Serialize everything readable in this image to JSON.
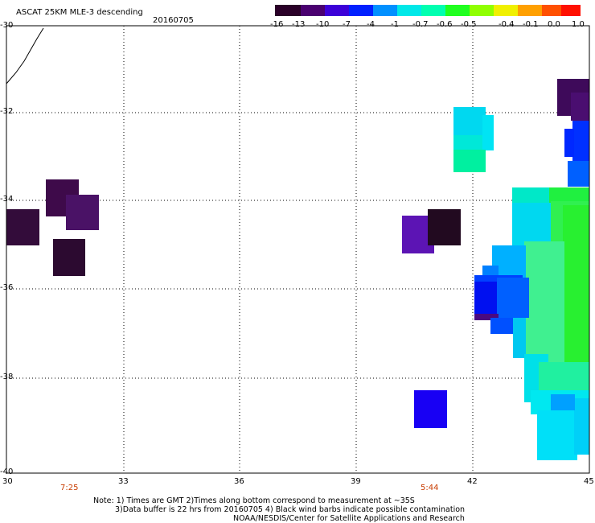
{
  "header": {
    "title": "ASCAT 25KM MLE-3 descending",
    "date": "20160705"
  },
  "colorbar": {
    "labels": [
      "-16",
      "-13",
      "-10",
      "-7",
      "-4",
      "-1",
      "-0.7",
      "-0.6",
      "-0.5",
      "-0.4",
      "-0.1",
      "0.0",
      "1.0"
    ],
    "colors": [
      "#2a0028",
      "#4a0070",
      "#3c00d8",
      "#0020ff",
      "#0090ff",
      "#00e8e8",
      "#00ffb0",
      "#20ff20",
      "#90ff00",
      "#f0f000",
      "#ffa000",
      "#ff5000",
      "#ff1000"
    ]
  },
  "axes": {
    "lon_labels": [
      "30",
      "33",
      "36",
      "39",
      "42",
      "45"
    ],
    "lat_labels": [
      "-30",
      "-32",
      "-34",
      "-36",
      "-38",
      "-40"
    ]
  },
  "times": [
    "7:25",
    "5:44"
  ],
  "notes": {
    "line1": "Note: 1) Times are GMT 2)Times along bottom correspond to measurement at ~35S",
    "line2": "3)Data buffer is 22 hrs from 20160705 4) Black wind barbs indicate possible contamination",
    "line3": "NOAA/NESDIS/Center for Satellite Applications and Research"
  }
}
